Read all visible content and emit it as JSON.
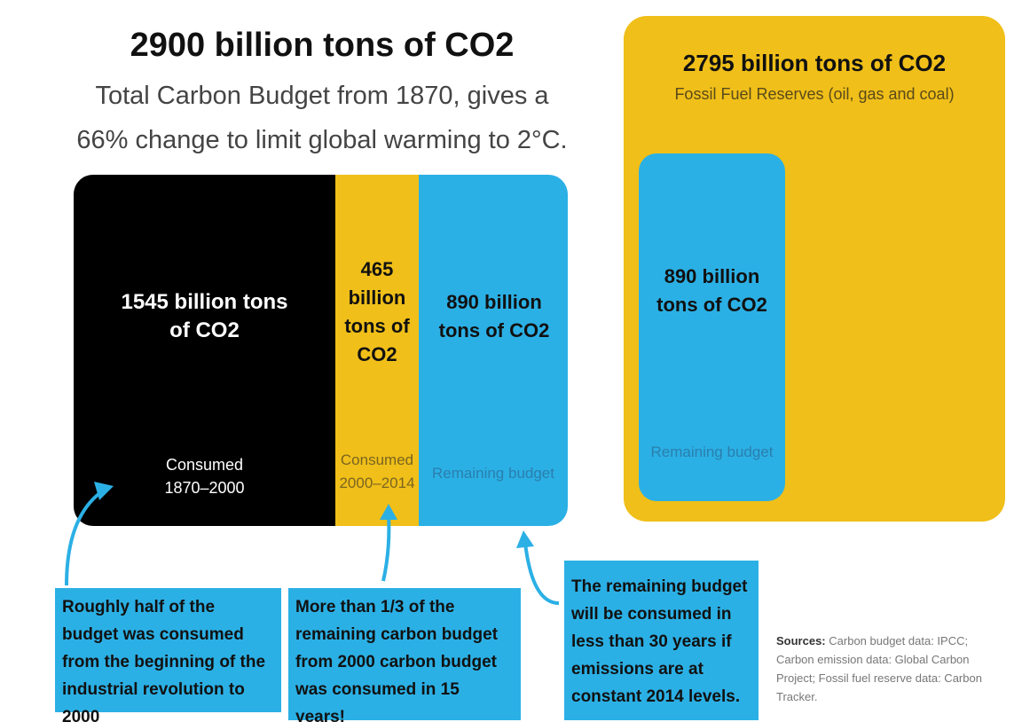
{
  "header": {
    "title": "2900 billion tons of CO2",
    "subtitle": [
      "Total Carbon Budget from 1870, gives a",
      "66% change to limit global warming to 2°C."
    ]
  },
  "budget": {
    "segments": [
      {
        "label": "1545 billion tons of CO2",
        "caption": "Consumed 1870–2000"
      },
      {
        "label": "465 billion tons of CO2",
        "caption": "Consumed 2000–2014"
      },
      {
        "label": "890 billion tons of CO2",
        "caption": "Remaining budget"
      }
    ]
  },
  "reserves": {
    "title": "2795 billion tons of CO2",
    "subtitle": "Fossil Fuel Reserves (oil, gas and coal)",
    "inner": {
      "label": "890 billion tons of CO2",
      "caption": "Remaining budget"
    }
  },
  "callouts": [
    "Roughly half of the budget was consumed from the beginning of the industrial revolution to 2000",
    "More than 1/3 of the remaining carbon budget from 2000 carbon budget was consumed in 15 years!",
    "The remaining budget will be consumed in less than 30 years if emissions are at constant 2014 levels."
  ],
  "sources": {
    "label": "Sources:",
    "text": "Carbon budget data: IPCC; Carbon emission data: Global Carbon Project; Fossil fuel reserve data: Carbon Tracker."
  }
}
